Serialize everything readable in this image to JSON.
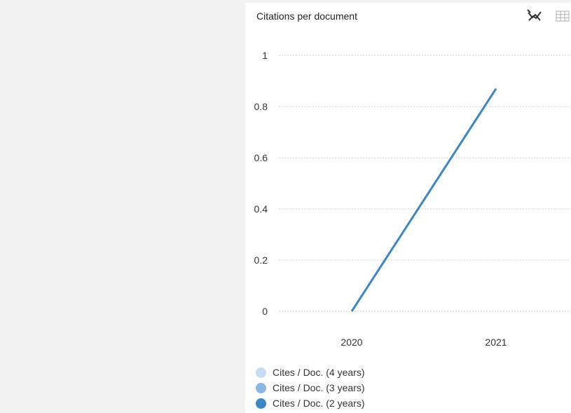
{
  "card": {
    "title": "Citations per document",
    "toolbar": {
      "line_icon": "no-line-chart-icon",
      "table_icon": "table-grid-icon"
    }
  },
  "colors": {
    "page_background": "#f2f2f2",
    "card_background": "#ffffff",
    "gridline": "#cccccc",
    "series_4y": "#c6dcf2",
    "series_3y": "#8ab8e2",
    "series_2y": "#3d86c6"
  },
  "chart_data": {
    "type": "line",
    "title": "Citations per document",
    "xlabel": "",
    "ylabel": "",
    "categories": [
      "2020",
      "2021"
    ],
    "ylim": [
      0,
      1
    ],
    "yticks": [
      "0",
      "0.2",
      "0.4",
      "0.6",
      "0.8",
      "1"
    ],
    "ytick_values": [
      0,
      0.2,
      0.4,
      0.6,
      0.8,
      1
    ],
    "grid": true,
    "legend_placement": "bottom-left",
    "series": [
      {
        "name": "Cites / Doc. (4 years)",
        "color": "#c6dcf2",
        "values": [
          null,
          null
        ]
      },
      {
        "name": "Cites / Doc. (3 years)",
        "color": "#8ab8e2",
        "values": [
          null,
          null
        ]
      },
      {
        "name": "Cites / Doc. (2 years)",
        "color": "#3d86c6",
        "values": [
          0,
          0.87
        ]
      }
    ]
  }
}
